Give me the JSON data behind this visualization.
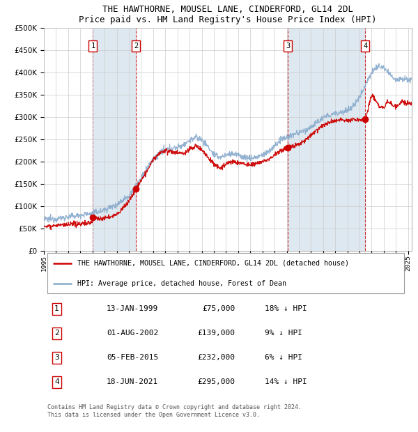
{
  "title": "THE HAWTHORNE, MOUSEL LANE, CINDERFORD, GL14 2DL",
  "subtitle": "Price paid vs. HM Land Registry's House Price Index (HPI)",
  "legend_line1": "THE HAWTHORNE, MOUSEL LANE, CINDERFORD, GL14 2DL (detached house)",
  "legend_line2": "HPI: Average price, detached house, Forest of Dean",
  "footer": "Contains HM Land Registry data © Crown copyright and database right 2024.\nThis data is licensed under the Open Government Licence v3.0.",
  "transactions": [
    {
      "num": 1,
      "date": "13-JAN-1999",
      "price": 75000,
      "pct": "18%",
      "year": 1999.04
    },
    {
      "num": 2,
      "date": "01-AUG-2002",
      "price": 139000,
      "pct": "9%",
      "year": 2002.58
    },
    {
      "num": 3,
      "date": "05-FEB-2015",
      "price": 232000,
      "pct": "6%",
      "year": 2015.09
    },
    {
      "num": 4,
      "date": "18-JUN-2021",
      "price": 295000,
      "pct": "14%",
      "year": 2021.46
    }
  ],
  "ylim_max": 500000,
  "yticks": [
    0,
    50000,
    100000,
    150000,
    200000,
    250000,
    300000,
    350000,
    400000,
    450000,
    500000
  ],
  "xlim_start": 1995.0,
  "xlim_end": 2025.3,
  "red_color": "#cc0000",
  "blue_color": "#88aacc",
  "shade_color": "#dde8f0",
  "background_color": "#ffffff",
  "grid_color": "#cccccc",
  "vline_color": "#cc0000",
  "hpi_anchors": [
    [
      1995.0,
      70000
    ],
    [
      1996.0,
      72000
    ],
    [
      1997.0,
      76000
    ],
    [
      1998.0,
      80000
    ],
    [
      1999.0,
      84000
    ],
    [
      2000.0,
      92000
    ],
    [
      2001.0,
      104000
    ],
    [
      2002.0,
      124000
    ],
    [
      2003.0,
      162000
    ],
    [
      2003.5,
      185000
    ],
    [
      2004.0,
      205000
    ],
    [
      2004.5,
      218000
    ],
    [
      2005.0,
      225000
    ],
    [
      2005.5,
      230000
    ],
    [
      2006.0,
      232000
    ],
    [
      2006.5,
      238000
    ],
    [
      2007.0,
      248000
    ],
    [
      2007.5,
      255000
    ],
    [
      2008.0,
      250000
    ],
    [
      2008.5,
      235000
    ],
    [
      2009.0,
      215000
    ],
    [
      2009.5,
      210000
    ],
    [
      2010.0,
      215000
    ],
    [
      2010.5,
      218000
    ],
    [
      2011.0,
      215000
    ],
    [
      2011.5,
      210000
    ],
    [
      2012.0,
      208000
    ],
    [
      2012.5,
      210000
    ],
    [
      2013.0,
      215000
    ],
    [
      2013.5,
      222000
    ],
    [
      2014.0,
      235000
    ],
    [
      2014.5,
      248000
    ],
    [
      2015.0,
      255000
    ],
    [
      2015.5,
      260000
    ],
    [
      2016.0,
      265000
    ],
    [
      2016.5,
      270000
    ],
    [
      2017.0,
      278000
    ],
    [
      2017.5,
      288000
    ],
    [
      2018.0,
      298000
    ],
    [
      2018.5,
      305000
    ],
    [
      2019.0,
      308000
    ],
    [
      2019.5,
      312000
    ],
    [
      2020.0,
      315000
    ],
    [
      2020.5,
      325000
    ],
    [
      2021.0,
      345000
    ],
    [
      2021.5,
      375000
    ],
    [
      2022.0,
      400000
    ],
    [
      2022.5,
      415000
    ],
    [
      2023.0,
      410000
    ],
    [
      2023.5,
      395000
    ],
    [
      2024.0,
      385000
    ],
    [
      2024.5,
      388000
    ],
    [
      2025.0,
      385000
    ],
    [
      2025.3,
      383000
    ]
  ],
  "red_anchors": [
    [
      1995.0,
      55000
    ],
    [
      1996.0,
      57000
    ],
    [
      1997.0,
      58000
    ],
    [
      1998.0,
      61000
    ],
    [
      1999.0,
      64000
    ],
    [
      1999.04,
      75000
    ],
    [
      1999.5,
      72000
    ],
    [
      2000.0,
      73000
    ],
    [
      2000.5,
      76000
    ],
    [
      2001.0,
      82000
    ],
    [
      2001.5,
      95000
    ],
    [
      2002.0,
      112000
    ],
    [
      2002.58,
      139000
    ],
    [
      2003.0,
      158000
    ],
    [
      2003.5,
      178000
    ],
    [
      2004.0,
      205000
    ],
    [
      2004.5,
      218000
    ],
    [
      2005.0,
      225000
    ],
    [
      2005.5,
      222000
    ],
    [
      2006.0,
      220000
    ],
    [
      2006.5,
      218000
    ],
    [
      2007.0,
      228000
    ],
    [
      2007.5,
      235000
    ],
    [
      2008.0,
      228000
    ],
    [
      2008.5,
      210000
    ],
    [
      2009.0,
      195000
    ],
    [
      2009.5,
      185000
    ],
    [
      2010.0,
      195000
    ],
    [
      2010.5,
      200000
    ],
    [
      2011.0,
      198000
    ],
    [
      2011.5,
      195000
    ],
    [
      2012.0,
      192000
    ],
    [
      2012.5,
      196000
    ],
    [
      2013.0,
      200000
    ],
    [
      2013.5,
      205000
    ],
    [
      2014.0,
      215000
    ],
    [
      2014.5,
      225000
    ],
    [
      2015.0,
      230000
    ],
    [
      2015.09,
      232000
    ],
    [
      2015.5,
      235000
    ],
    [
      2016.0,
      240000
    ],
    [
      2016.5,
      248000
    ],
    [
      2017.0,
      260000
    ],
    [
      2017.5,
      272000
    ],
    [
      2018.0,
      282000
    ],
    [
      2018.5,
      288000
    ],
    [
      2019.0,
      292000
    ],
    [
      2019.5,
      295000
    ],
    [
      2020.0,
      292000
    ],
    [
      2020.5,
      295000
    ],
    [
      2021.0,
      292000
    ],
    [
      2021.46,
      295000
    ],
    [
      2021.5,
      295000
    ],
    [
      2021.8,
      330000
    ],
    [
      2022.0,
      350000
    ],
    [
      2022.3,
      340000
    ],
    [
      2022.6,
      325000
    ],
    [
      2023.0,
      320000
    ],
    [
      2023.3,
      335000
    ],
    [
      2023.6,
      330000
    ],
    [
      2024.0,
      325000
    ],
    [
      2024.3,
      330000
    ],
    [
      2024.6,
      335000
    ],
    [
      2025.0,
      330000
    ],
    [
      2025.3,
      328000
    ]
  ]
}
